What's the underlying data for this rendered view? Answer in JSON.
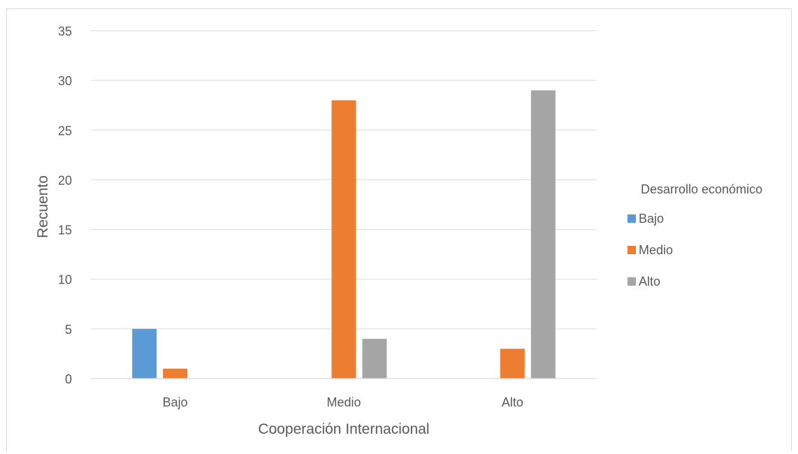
{
  "chart_data": {
    "type": "bar",
    "title": "",
    "xlabel": "Cooperación Internacional",
    "ylabel": "Recuento",
    "ylim": [
      0,
      35
    ],
    "yticks": [
      0,
      5,
      10,
      15,
      20,
      25,
      30,
      35
    ],
    "grid": true,
    "legend_position": "right",
    "legend_title": "Desarrollo económico",
    "categories": [
      "Bajo",
      "Medio",
      "Alto"
    ],
    "series": [
      {
        "name": "Bajo",
        "color": "#5b9bd5",
        "values": [
          5,
          0,
          0
        ]
      },
      {
        "name": "Medio",
        "color": "#ed7d31",
        "values": [
          1,
          28,
          3
        ]
      },
      {
        "name": "Alto",
        "color": "#a5a5a5",
        "values": [
          0,
          4,
          29
        ]
      }
    ]
  }
}
